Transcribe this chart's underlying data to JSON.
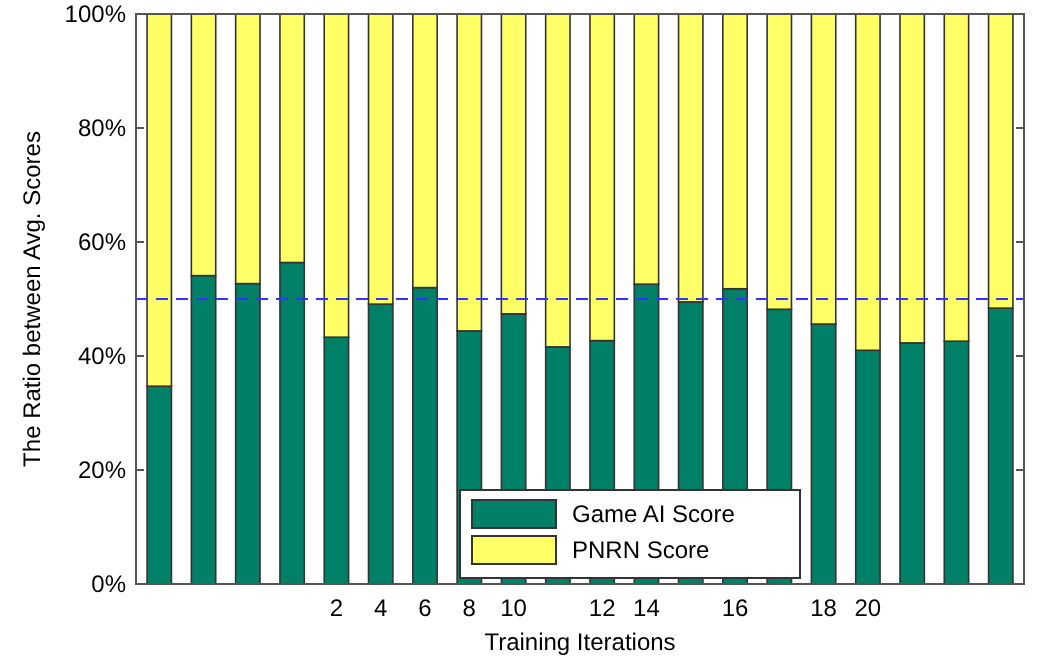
{
  "chart_data": {
    "type": "bar",
    "stacked": true,
    "xlabel": "Training Iterations",
    "ylabel": "The Ratio between Avg. Scores",
    "categories": [
      null,
      null,
      null,
      null,
      "2",
      "4",
      "6",
      "8",
      "10",
      null,
      "12",
      "14",
      null,
      "16",
      null,
      "18",
      "20",
      null,
      null,
      null
    ],
    "series": [
      {
        "name": "Game AI Score",
        "color": "#008066",
        "values": [
          34.7,
          54.1,
          52.7,
          56.4,
          43.3,
          49.1,
          52.0,
          44.4,
          47.4,
          41.6,
          42.7,
          52.6,
          49.5,
          51.8,
          48.2,
          45.6,
          41.0,
          42.3,
          42.6,
          48.4
        ]
      },
      {
        "name": "PNRN Score",
        "color": "#ffff66",
        "values": [
          65.3,
          45.9,
          47.3,
          43.6,
          56.7,
          50.9,
          48.0,
          55.6,
          52.6,
          58.4,
          57.3,
          47.4,
          50.5,
          48.2,
          51.8,
          54.4,
          59.0,
          57.7,
          57.4,
          51.6
        ]
      }
    ],
    "ylim": [
      0,
      100
    ],
    "yticks": [
      {
        "value": 0,
        "label": "0%"
      },
      {
        "value": 20,
        "label": "20%"
      },
      {
        "value": 40,
        "label": "40%"
      },
      {
        "value": 60,
        "label": "60%"
      },
      {
        "value": 80,
        "label": "80%"
      },
      {
        "value": 100,
        "label": "100%"
      }
    ],
    "ref_lines": [
      {
        "axis": "y",
        "value": 50,
        "color": "#3333ff",
        "line_style": "dashed"
      }
    ],
    "legend": "bottom",
    "grid": false
  }
}
